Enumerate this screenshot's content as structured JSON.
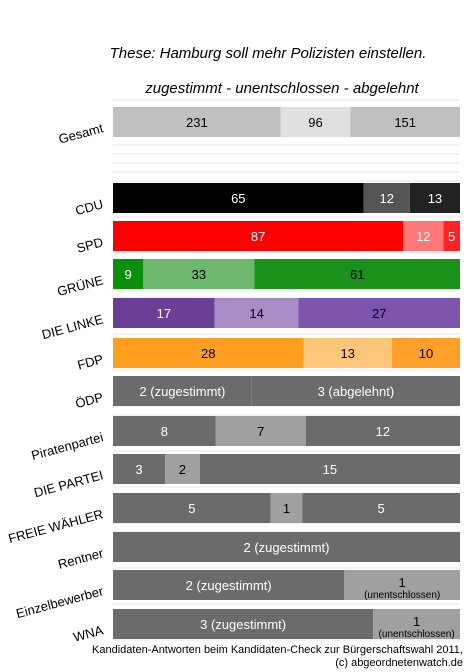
{
  "chart_data": {
    "type": "bar",
    "orientation": "horizontal",
    "stacked": "percent",
    "title": "These: Hamburg soll mehr Polizisten einstellen.",
    "subtitle": "zugestimmt - unentschlossen - abgelehnt",
    "series": [
      {
        "name": "zugestimmt"
      },
      {
        "name": "unentschlossen"
      },
      {
        "name": "abgelehnt"
      }
    ],
    "bars": [
      {
        "category": "Gesamt",
        "values": [
          231,
          96,
          151
        ],
        "labels": [
          "231",
          "96",
          "151"
        ],
        "colors": [
          "#c0c0c0",
          "#e0e0e0",
          "#c0c0c0"
        ],
        "text_colors": [
          "#000000",
          "#000000",
          "#000000"
        ]
      },
      {
        "category": "CDU",
        "values": [
          65,
          12,
          13
        ],
        "labels": [
          "65",
          "12",
          "13"
        ],
        "colors": [
          "#000000",
          "#555555",
          "#222222"
        ],
        "text_colors": [
          "#ffffff",
          "#ffffff",
          "#ffffff"
        ]
      },
      {
        "category": "SPD",
        "values": [
          87,
          12,
          5
        ],
        "labels": [
          "87",
          "12",
          "5"
        ],
        "colors": [
          "#ff0000",
          "#ff7777",
          "#ff2222"
        ],
        "text_colors": [
          "#ffffff",
          "#ffffff",
          "#ffffff"
        ]
      },
      {
        "category": "GRÜNE",
        "values": [
          9,
          33,
          61
        ],
        "labels": [
          "9",
          "33",
          "61"
        ],
        "colors": [
          "#0a8f0a",
          "#6db86d",
          "#1a921a"
        ],
        "text_colors": [
          "#ffffff",
          "#000000",
          "#000000"
        ]
      },
      {
        "category": "DIE LINKE",
        "values": [
          17,
          14,
          27
        ],
        "labels": [
          "17",
          "14",
          "27"
        ],
        "colors": [
          "#6a3f95",
          "#a88cc5",
          "#7e55ad"
        ],
        "text_colors": [
          "#ffffff",
          "#000000",
          "#000000"
        ]
      },
      {
        "category": "FDP",
        "values": [
          28,
          13,
          10
        ],
        "labels": [
          "28",
          "13",
          "10"
        ],
        "colors": [
          "#ff9e1f",
          "#ffc67a",
          "#ffa02a"
        ],
        "text_colors": [
          "#000000",
          "#000000",
          "#000000"
        ]
      },
      {
        "category": "ÖDP",
        "values": [
          2,
          0,
          3
        ],
        "labels": [
          "2 (zugestimmt)",
          "",
          "3 (abgelehnt)"
        ],
        "colors": [
          "#6b6b6b",
          "#a0a0a0",
          "#6b6b6b"
        ],
        "text_colors": [
          "#ffffff",
          "#ffffff",
          "#ffffff"
        ]
      },
      {
        "category": "Piratenpartei",
        "values": [
          8,
          7,
          12
        ],
        "labels": [
          "8",
          "7",
          "12"
        ],
        "colors": [
          "#6b6b6b",
          "#a0a0a0",
          "#6b6b6b"
        ],
        "text_colors": [
          "#ffffff",
          "#000000",
          "#ffffff"
        ]
      },
      {
        "category": "DIE PARTEI",
        "values": [
          3,
          2,
          15
        ],
        "labels": [
          "3",
          "2",
          "15"
        ],
        "colors": [
          "#6b6b6b",
          "#a0a0a0",
          "#6b6b6b"
        ],
        "text_colors": [
          "#ffffff",
          "#000000",
          "#ffffff"
        ]
      },
      {
        "category": "FREIE WÄHLER",
        "values": [
          5,
          1,
          5
        ],
        "labels": [
          "5",
          "1",
          "5"
        ],
        "colors": [
          "#6b6b6b",
          "#a0a0a0",
          "#6b6b6b"
        ],
        "text_colors": [
          "#ffffff",
          "#000000",
          "#ffffff"
        ]
      },
      {
        "category": "Rentner",
        "values": [
          2,
          0,
          0
        ],
        "labels": [
          "2 (zugestimmt)",
          "",
          ""
        ],
        "colors": [
          "#6b6b6b",
          "#a0a0a0",
          "#6b6b6b"
        ],
        "text_colors": [
          "#ffffff",
          "#ffffff",
          "#ffffff"
        ]
      },
      {
        "category": "Einzelbewerber",
        "values": [
          2,
          1,
          0
        ],
        "labels": [
          "2 (zugestimmt)",
          "1\n(unentschlossen)",
          ""
        ],
        "colors": [
          "#6b6b6b",
          "#a0a0a0",
          "#6b6b6b"
        ],
        "text_colors": [
          "#ffffff",
          "#000000",
          "#ffffff"
        ]
      },
      {
        "category": "WNA",
        "values": [
          3,
          1,
          0
        ],
        "labels": [
          "3 (zugestimmt)",
          "1\n(unentschlossen)",
          ""
        ],
        "colors": [
          "#6b6b6b",
          "#a0a0a0",
          "#6b6b6b"
        ],
        "text_colors": [
          "#ffffff",
          "#000000",
          "#ffffff"
        ]
      }
    ],
    "grid": true,
    "footer": [
      "Kandidaten-Antworten beim Kandidaten-Check zur Bürgerschaftswahl 2011,",
      "(c) abgeordnetenwatch.de"
    ]
  }
}
